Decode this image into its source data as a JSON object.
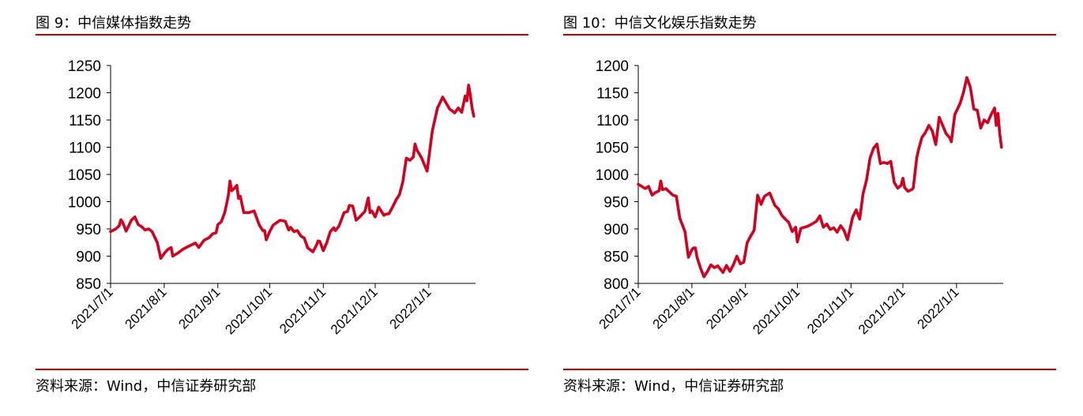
{
  "panels": [
    {
      "title": "图 9：中信媒体指数走势",
      "source": "资料来源：Wind，中信证券研究部",
      "accent_color": "#c00000",
      "line_color": "#d2001e"
    },
    {
      "title": "图 10：中信文化娱乐指数走势",
      "source": "资料来源：Wind，中信证券研究部",
      "accent_color": "#c00000",
      "line_color": "#d2001e"
    }
  ],
  "chart_data": [
    {
      "type": "line",
      "title": "图 9：中信媒体指数走势",
      "xlabel": "",
      "ylabel": "",
      "ylim": [
        850,
        1250
      ],
      "yticks": [
        850,
        900,
        950,
        1000,
        1050,
        1100,
        1150,
        1200,
        1250
      ],
      "xlim": [
        "2021-07-01",
        "2022-01-28"
      ],
      "xtick_labels": [
        "2021/7/1",
        "2021/8/1",
        "2021/9/1",
        "2021/10/1",
        "2021/11/1",
        "2021/12/1",
        "2022/1/1"
      ],
      "xtick_dates": [
        "2021-07-01",
        "2021-08-01",
        "2021-09-01",
        "2021-10-01",
        "2021-11-01",
        "2021-12-01",
        "2022-01-01"
      ],
      "grid": false,
      "legend": "none",
      "series": [
        {
          "x": [
            "2021-07-01",
            "2021-07-04",
            "2021-07-06",
            "2021-07-07",
            "2021-07-08",
            "2021-07-10",
            "2021-07-13",
            "2021-07-15",
            "2021-07-17",
            "2021-07-19",
            "2021-07-21",
            "2021-07-23",
            "2021-07-25",
            "2021-07-28",
            "2021-07-30",
            "2021-08-01",
            "2021-08-03",
            "2021-08-05",
            "2021-08-06",
            "2021-08-09",
            "2021-08-12",
            "2021-08-15",
            "2021-08-17",
            "2021-08-19",
            "2021-08-21",
            "2021-08-24",
            "2021-08-27",
            "2021-08-29",
            "2021-08-31",
            "2021-09-01",
            "2021-09-03",
            "2021-09-05",
            "2021-09-07",
            "2021-09-08",
            "2021-09-09",
            "2021-09-11",
            "2021-09-12",
            "2021-09-13",
            "2021-09-14",
            "2021-09-16",
            "2021-09-19",
            "2021-09-22",
            "2021-09-25",
            "2021-09-27",
            "2021-09-28",
            "2021-09-29",
            "2021-10-01",
            "2021-10-03",
            "2021-10-07",
            "2021-10-10",
            "2021-10-12",
            "2021-10-13",
            "2021-10-15",
            "2021-10-17",
            "2021-10-19",
            "2021-10-21",
            "2021-10-23",
            "2021-10-26",
            "2021-10-28",
            "2021-10-29",
            "2021-10-30",
            "2021-11-01",
            "2021-11-03",
            "2021-11-05",
            "2021-11-07",
            "2021-11-08",
            "2021-11-10",
            "2021-11-13",
            "2021-11-15",
            "2021-11-16",
            "2021-11-18",
            "2021-11-20",
            "2021-11-22",
            "2021-11-25",
            "2021-11-27",
            "2021-11-28",
            "2021-11-29",
            "2021-12-01",
            "2021-12-03",
            "2021-12-06",
            "2021-12-07",
            "2021-12-09",
            "2021-12-11",
            "2021-12-13",
            "2021-12-15",
            "2021-12-17",
            "2021-12-19",
            "2021-12-21",
            "2021-12-23",
            "2021-12-24",
            "2021-12-25",
            "2021-12-27",
            "2021-12-28",
            "2021-12-31",
            "2022-01-03",
            "2022-01-06",
            "2022-01-09",
            "2022-01-13",
            "2022-01-16",
            "2022-01-18",
            "2022-01-20",
            "2022-01-22",
            "2022-01-23",
            "2022-01-24",
            "2022-01-25",
            "2022-01-26",
            "2022-01-27"
          ],
          "values": [
            945,
            950,
            956,
            967,
            962,
            946,
            966,
            972,
            958,
            954,
            948,
            950,
            945,
            925,
            896,
            905,
            912,
            916,
            900,
            906,
            913,
            918,
            921,
            924,
            916,
            929,
            934,
            941,
            943,
            958,
            963,
            980,
            1010,
            1038,
            1020,
            1026,
            1030,
            1006,
            1010,
            980,
            980,
            983,
            957,
            947,
            947,
            930,
            945,
            957,
            966,
            964,
            948,
            953,
            945,
            947,
            937,
            933,
            915,
            908,
            920,
            928,
            927,
            910,
            925,
            945,
            952,
            947,
            955,
            980,
            982,
            993,
            992,
            966,
            972,
            982,
            1007,
            980,
            983,
            972,
            990,
            975,
            977,
            978,
            990,
            1003,
            1013,
            1037,
            1080,
            1076,
            1082,
            1106,
            1095,
            1085,
            1079,
            1056,
            1130,
            1172,
            1192,
            1170,
            1163,
            1172,
            1164,
            1194,
            1185,
            1214,
            1196,
            1172,
            1157
          ]
        }
      ]
    },
    {
      "type": "line",
      "title": "图 10：中信文化娱乐指数走势",
      "xlabel": "",
      "ylabel": "",
      "ylim": [
        800,
        1200
      ],
      "yticks": [
        800,
        850,
        900,
        950,
        1000,
        1050,
        1100,
        1150,
        1200
      ],
      "xlim": [
        "2021-07-01",
        "2022-01-28"
      ],
      "xtick_labels": [
        "2021/7/1",
        "2021/8/1",
        "2021/9/1",
        "2021/10/1",
        "2021/11/1",
        "2021/12/1",
        "2022/1/1"
      ],
      "xtick_dates": [
        "2021-07-01",
        "2021-08-01",
        "2021-09-01",
        "2021-10-01",
        "2021-11-01",
        "2021-12-01",
        "2022-01-01"
      ],
      "grid": false,
      "legend": "none",
      "series": [
        {
          "x": [
            "2021-07-01",
            "2021-07-03",
            "2021-07-05",
            "2021-07-07",
            "2021-07-09",
            "2021-07-11",
            "2021-07-13",
            "2021-07-14",
            "2021-07-15",
            "2021-07-17",
            "2021-07-19",
            "2021-07-21",
            "2021-07-23",
            "2021-07-25",
            "2021-07-28",
            "2021-07-30",
            "2021-08-01",
            "2021-08-02",
            "2021-08-03",
            "2021-08-04",
            "2021-08-06",
            "2021-08-08",
            "2021-08-10",
            "2021-08-12",
            "2021-08-14",
            "2021-08-16",
            "2021-08-19",
            "2021-08-21",
            "2021-08-23",
            "2021-08-25",
            "2021-08-27",
            "2021-08-29",
            "2021-08-31",
            "2021-09-02",
            "2021-09-04",
            "2021-09-05",
            "2021-09-06",
            "2021-09-08",
            "2021-09-10",
            "2021-09-12",
            "2021-09-15",
            "2021-09-18",
            "2021-09-20",
            "2021-09-22",
            "2021-09-24",
            "2021-09-26",
            "2021-09-28",
            "2021-09-30",
            "2021-10-01",
            "2021-10-03",
            "2021-10-07",
            "2021-10-10",
            "2021-10-12",
            "2021-10-14",
            "2021-10-16",
            "2021-10-18",
            "2021-10-20",
            "2021-10-22",
            "2021-10-24",
            "2021-10-26",
            "2021-10-28",
            "2021-10-30",
            "2021-11-01",
            "2021-11-02",
            "2021-11-04",
            "2021-11-06",
            "2021-11-08",
            "2021-11-10",
            "2021-11-12",
            "2021-11-14",
            "2021-11-16",
            "2021-11-18",
            "2021-11-20",
            "2021-11-22",
            "2021-11-24",
            "2021-11-26",
            "2021-11-28",
            "2021-11-30",
            "2021-12-01",
            "2021-12-02",
            "2021-12-04",
            "2021-12-06",
            "2021-12-07",
            "2021-12-09",
            "2021-12-10",
            "2021-12-12",
            "2021-12-14",
            "2021-12-16",
            "2021-12-18",
            "2021-12-20",
            "2021-12-22",
            "2021-12-24",
            "2021-12-26",
            "2021-12-28",
            "2021-12-29",
            "2021-12-31",
            "2022-01-03",
            "2022-01-05",
            "2022-01-07",
            "2022-01-09",
            "2022-01-11",
            "2022-01-13",
            "2022-01-15",
            "2022-01-17",
            "2022-01-19",
            "2022-01-21",
            "2022-01-23",
            "2022-01-24",
            "2022-01-25",
            "2022-01-26",
            "2022-01-27"
          ],
          "values": [
            982,
            978,
            974,
            978,
            962,
            967,
            970,
            988,
            972,
            974,
            968,
            962,
            960,
            920,
            895,
            848,
            862,
            865,
            865,
            848,
            828,
            812,
            822,
            834,
            829,
            832,
            820,
            833,
            822,
            834,
            850,
            836,
            839,
            875,
            887,
            892,
            898,
            962,
            945,
            960,
            966,
            943,
            937,
            925,
            918,
            912,
            895,
            903,
            876,
            901,
            905,
            910,
            914,
            924,
            903,
            909,
            899,
            902,
            894,
            906,
            897,
            880,
            908,
            922,
            935,
            918,
            965,
            990,
            1030,
            1048,
            1056,
            1020,
            1022,
            1020,
            1024,
            985,
            975,
            980,
            993,
            976,
            969,
            972,
            975,
            1030,
            1045,
            1068,
            1077,
            1090,
            1080,
            1055,
            1105,
            1090,
            1075,
            1068,
            1060,
            1110,
            1130,
            1150,
            1178,
            1160,
            1120,
            1118,
            1085,
            1100,
            1095,
            1110,
            1122,
            1090,
            1112,
            1075,
            1050
          ]
        }
      ]
    }
  ]
}
